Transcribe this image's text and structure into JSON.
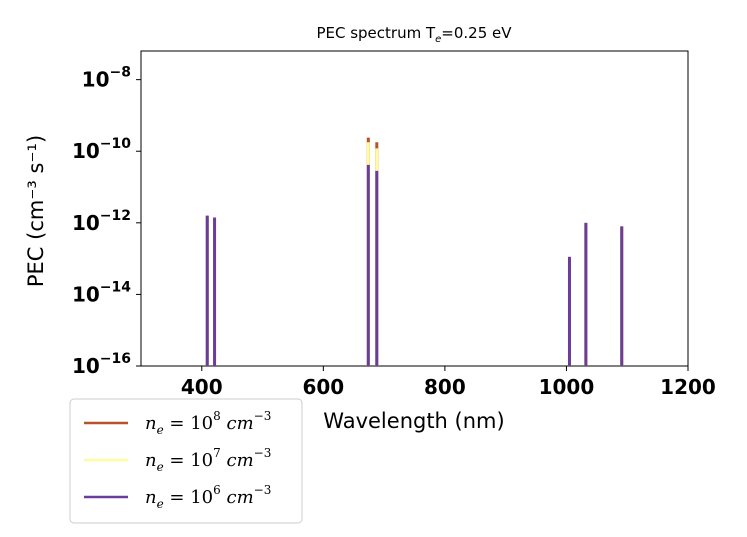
{
  "chart_data": {
    "type": "bar",
    "title_main": "PEC spectrum  T",
    "title_sub": "e",
    "title_value": "=0.25 eV",
    "xlabel": "Wavelength (nm)",
    "ylabel": "PEC (cm⁻³ s⁻¹)",
    "xlim": [
      300,
      1200
    ],
    "ylim_log10": [
      -16,
      -7.2
    ],
    "xticks": [
      400,
      600,
      800,
      1000,
      1200
    ],
    "yticks": [
      {
        "exp": -8,
        "base": "10",
        "sup": "−8"
      },
      {
        "exp": -10,
        "base": "10",
        "sup": "−10"
      },
      {
        "exp": -12,
        "base": "10",
        "sup": "−12"
      },
      {
        "exp": -14,
        "base": "10",
        "sup": "−14"
      },
      {
        "exp": -16,
        "base": "10",
        "sup": "−16"
      }
    ],
    "series": [
      {
        "name": "n_e = 10^8 cm^-3",
        "legend_base": "n",
        "legend_sub": "e",
        "legend_eq": " = 10",
        "legend_exp": "8",
        "legend_unit": " cm",
        "legend_unit_exp": "−3",
        "color": "#b5532a",
        "lines": [
          [
            409,
            -11.8
          ],
          [
            421,
            -11.85
          ],
          [
            674,
            -9.62
          ],
          [
            688,
            -9.75
          ],
          [
            1005,
            -12.95
          ],
          [
            1032,
            -12.0
          ],
          [
            1091,
            -12.1
          ]
        ]
      },
      {
        "name": "n_e = 10^7 cm^-3",
        "legend_base": "n",
        "legend_sub": "e",
        "legend_eq": " = 10",
        "legend_exp": "7",
        "legend_unit": " cm",
        "legend_unit_exp": "−3",
        "color": "#fffc9f",
        "lines": [
          [
            409,
            -11.8
          ],
          [
            421,
            -11.85
          ],
          [
            674,
            -9.75
          ],
          [
            688,
            -9.92
          ],
          [
            1005,
            -12.95
          ],
          [
            1032,
            -12.0
          ],
          [
            1091,
            -12.1
          ]
        ]
      },
      {
        "name": "n_e = 10^6 cm^-3",
        "legend_base": "n",
        "legend_sub": "e",
        "legend_eq": " = 10",
        "legend_exp": "6",
        "legend_unit": " cm",
        "legend_unit_exp": "−3",
        "color": "#6a3d9a",
        "lines": [
          [
            409,
            -11.8
          ],
          [
            421,
            -11.85
          ],
          [
            674,
            -10.38
          ],
          [
            688,
            -10.55
          ],
          [
            1005,
            -12.95
          ],
          [
            1032,
            -12.0
          ],
          [
            1091,
            -12.1
          ]
        ]
      }
    ],
    "legend": "below-left"
  }
}
